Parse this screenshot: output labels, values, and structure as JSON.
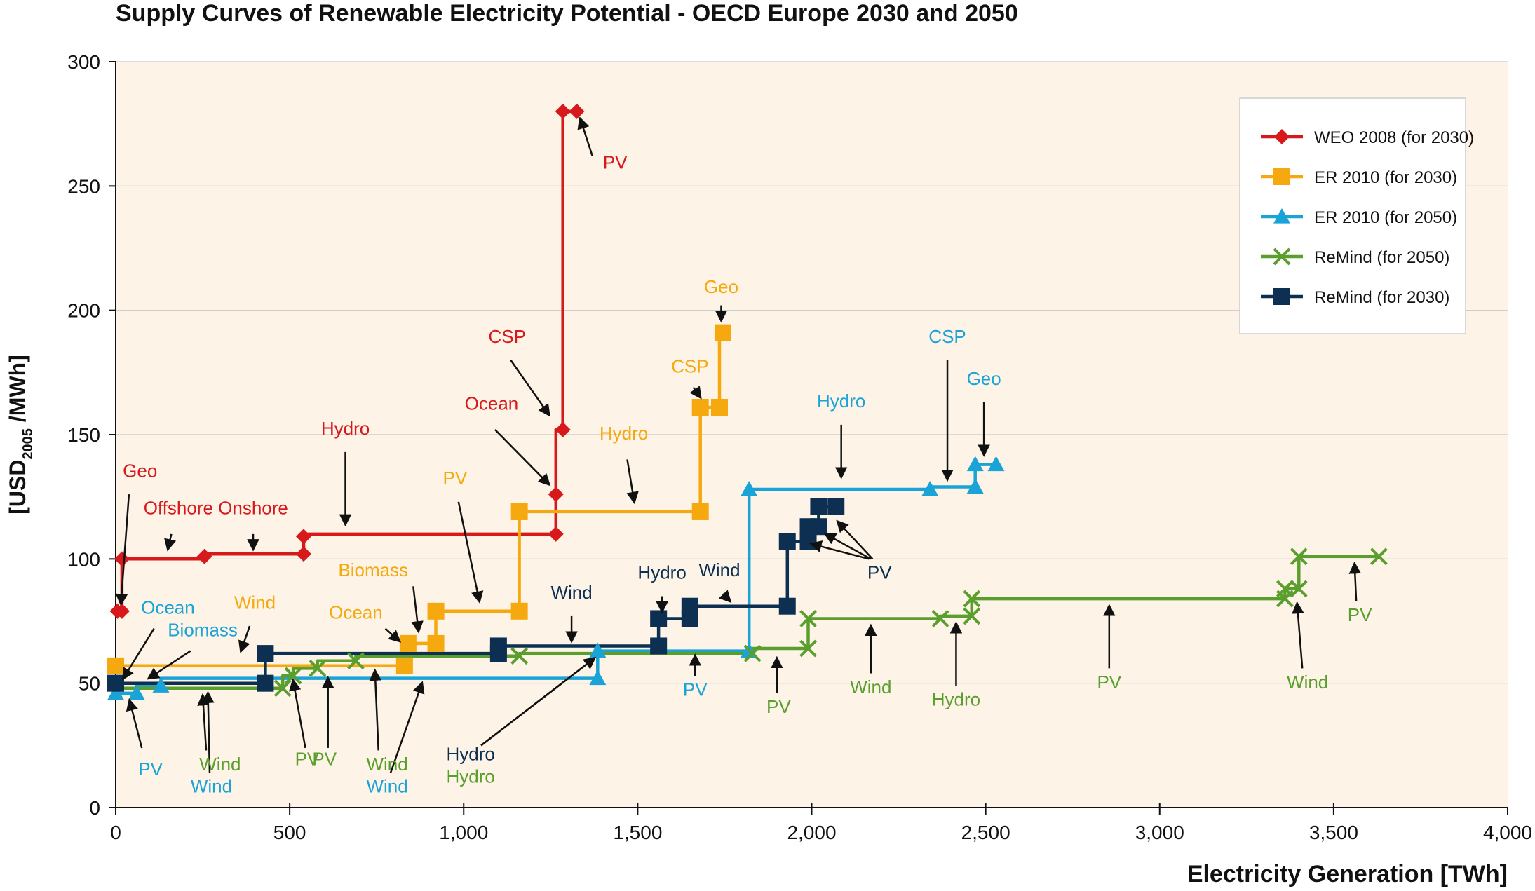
{
  "chart_data": {
    "type": "line",
    "title": "Supply Curves of Renewable Electricity Potential - OECD Europe 2030 and 2050",
    "xlabel": "Electricity Generation [TWh]",
    "ylabel_main": "[USD",
    "ylabel_sub": "2005",
    "ylabel_tail": " /MWh]",
    "xlim": [
      0,
      4000
    ],
    "ylim": [
      0,
      300
    ],
    "xticks": [
      0,
      500,
      1000,
      1500,
      2000,
      2500,
      3000,
      3500,
      4000
    ],
    "xtick_labels": [
      "0",
      "500",
      "1,000",
      "1,500",
      "2,000",
      "2,500",
      "3,000",
      "3,500",
      "4,000"
    ],
    "yticks": [
      0,
      50,
      100,
      150,
      200,
      250,
      300
    ],
    "ytick_labels": [
      "0",
      "50",
      "100",
      "150",
      "200",
      "250",
      "300"
    ],
    "grid": true,
    "legend_position": "top-right",
    "colors": {
      "weo": "#d7191c",
      "er2030": "#f5a90f",
      "er2050": "#1aa3d6",
      "remind2050": "#5a9e2e",
      "remind2030": "#0d2f52",
      "plot_bg": "#fdf4e7",
      "grid": "#c8c8c8"
    },
    "series": [
      {
        "name": "WEO 2008 (for 2030)",
        "color_key": "weo",
        "marker": "diamond",
        "points": [
          [
            0,
            79
          ],
          [
            18,
            79
          ],
          [
            18,
            100
          ],
          [
            255,
            100
          ],
          [
            255,
            102
          ],
          [
            540,
            102
          ],
          [
            540,
            110
          ],
          [
            1265,
            110
          ],
          [
            1265,
            126
          ],
          [
            1265,
            152
          ],
          [
            1285,
            152
          ],
          [
            1285,
            280
          ],
          [
            1325,
            280
          ]
        ],
        "markers": [
          [
            5,
            79
          ],
          [
            18,
            79
          ],
          [
            18,
            100
          ],
          [
            255,
            101
          ],
          [
            540,
            102
          ],
          [
            540,
            109
          ],
          [
            1265,
            110
          ],
          [
            1265,
            126
          ],
          [
            1285,
            152
          ],
          [
            1285,
            280
          ],
          [
            1325,
            280
          ]
        ]
      },
      {
        "name": "ER 2010 (for 2030)",
        "color_key": "er2030",
        "marker": "square",
        "points": [
          [
            0,
            57
          ],
          [
            830,
            57
          ],
          [
            830,
            66
          ],
          [
            920,
            66
          ],
          [
            920,
            79
          ],
          [
            1160,
            79
          ],
          [
            1160,
            119
          ],
          [
            1680,
            119
          ],
          [
            1680,
            161
          ],
          [
            1735,
            161
          ],
          [
            1735,
            191
          ],
          [
            1745,
            191
          ]
        ],
        "markers": [
          [
            0,
            57
          ],
          [
            830,
            57
          ],
          [
            840,
            66
          ],
          [
            920,
            66
          ],
          [
            920,
            79
          ],
          [
            1160,
            79
          ],
          [
            1160,
            119
          ],
          [
            1680,
            119
          ],
          [
            1680,
            161
          ],
          [
            1735,
            161
          ],
          [
            1745,
            191
          ]
        ]
      },
      {
        "name": "ER 2010 (for 2050)",
        "color_key": "er2050",
        "marker": "triangle",
        "points": [
          [
            0,
            46
          ],
          [
            60,
            46
          ],
          [
            60,
            49
          ],
          [
            130,
            49
          ],
          [
            130,
            52
          ],
          [
            1385,
            52
          ],
          [
            1385,
            63
          ],
          [
            1820,
            63
          ],
          [
            1820,
            128
          ],
          [
            2340,
            128
          ],
          [
            2340,
            129
          ],
          [
            2470,
            129
          ],
          [
            2470,
            138
          ],
          [
            2530,
            138
          ]
        ],
        "markers": [
          [
            0,
            46
          ],
          [
            60,
            46
          ],
          [
            130,
            49
          ],
          [
            1385,
            52
          ],
          [
            1385,
            63
          ],
          [
            1820,
            63
          ],
          [
            1820,
            128
          ],
          [
            2340,
            128
          ],
          [
            2470,
            129
          ],
          [
            2470,
            138
          ],
          [
            2530,
            138
          ]
        ]
      },
      {
        "name": "ReMind (for 2050)",
        "color_key": "remind2050",
        "marker": "x",
        "points": [
          [
            0,
            48
          ],
          [
            480,
            48
          ],
          [
            480,
            53
          ],
          [
            510,
            53
          ],
          [
            510,
            56
          ],
          [
            580,
            56
          ],
          [
            580,
            59
          ],
          [
            690,
            59
          ],
          [
            690,
            61
          ],
          [
            1160,
            61
          ],
          [
            1160,
            62
          ],
          [
            1830,
            62
          ],
          [
            1830,
            64
          ],
          [
            1990,
            64
          ],
          [
            1990,
            76
          ],
          [
            2370,
            76
          ],
          [
            2370,
            77
          ],
          [
            2460,
            77
          ],
          [
            2460,
            84
          ],
          [
            3360,
            84
          ],
          [
            3360,
            88
          ],
          [
            3400,
            88
          ],
          [
            3400,
            101
          ],
          [
            3630,
            101
          ]
        ],
        "markers": [
          [
            480,
            48
          ],
          [
            510,
            53
          ],
          [
            580,
            56
          ],
          [
            690,
            59
          ],
          [
            1160,
            61
          ],
          [
            1830,
            62
          ],
          [
            1990,
            64
          ],
          [
            1990,
            76
          ],
          [
            2370,
            76
          ],
          [
            2460,
            77
          ],
          [
            2460,
            84
          ],
          [
            3360,
            84
          ],
          [
            3360,
            88
          ],
          [
            3400,
            88
          ],
          [
            3400,
            101
          ],
          [
            3630,
            101
          ]
        ]
      },
      {
        "name": "ReMind (for 2030)",
        "color_key": "remind2030",
        "marker": "square",
        "points": [
          [
            0,
            50
          ],
          [
            430,
            50
          ],
          [
            430,
            62
          ],
          [
            1100,
            62
          ],
          [
            1100,
            65
          ],
          [
            1560,
            65
          ],
          [
            1560,
            76
          ],
          [
            1650,
            76
          ],
          [
            1650,
            81
          ],
          [
            1930,
            81
          ],
          [
            1930,
            107
          ],
          [
            1990,
            107
          ],
          [
            1990,
            113
          ],
          [
            2020,
            113
          ],
          [
            2020,
            121
          ],
          [
            2070,
            121
          ]
        ],
        "markers": [
          [
            0,
            50
          ],
          [
            430,
            50
          ],
          [
            430,
            62
          ],
          [
            1100,
            62
          ],
          [
            1100,
            65
          ],
          [
            1560,
            65
          ],
          [
            1560,
            76
          ],
          [
            1650,
            76
          ],
          [
            1650,
            81
          ],
          [
            1930,
            81
          ],
          [
            1930,
            107
          ],
          [
            1990,
            107
          ],
          [
            1990,
            113
          ],
          [
            2020,
            113
          ],
          [
            2020,
            121
          ],
          [
            2070,
            121
          ]
        ]
      }
    ],
    "annotations": [
      {
        "text": "PV",
        "color_key": "weo",
        "tx": 1435,
        "ty": 257,
        "ax": 1335,
        "ay": 277,
        "lx": 1370,
        "ly": 262
      },
      {
        "text": "CSP",
        "color_key": "weo",
        "tx": 1125,
        "ty": 187,
        "ax": 1245,
        "ay": 158,
        "lx": 1135,
        "ly": 180
      },
      {
        "text": "Ocean",
        "color_key": "weo",
        "tx": 1080,
        "ty": 160,
        "ax": 1245,
        "ay": 130,
        "lx": 1090,
        "ly": 152
      },
      {
        "text": "Hydro",
        "color_key": "weo",
        "tx": 660,
        "ty": 150,
        "ax": 660,
        "ay": 114,
        "lx": 660,
        "ly": 143
      },
      {
        "text": "Geo",
        "color_key": "weo",
        "tx": 70,
        "ty": 133,
        "ax": 15,
        "ay": 82,
        "lx": 38,
        "ly": 126
      },
      {
        "text": "Offshore",
        "color_key": "weo",
        "tx": 180,
        "ty": 118,
        "ax": 150,
        "ay": 104,
        "lx": 160,
        "ly": 110
      },
      {
        "text": "Onshore",
        "color_key": "weo",
        "tx": 395,
        "ty": 118,
        "ax": 395,
        "ay": 104,
        "lx": 395,
        "ly": 110
      },
      {
        "text": "Geo",
        "color_key": "er2030",
        "tx": 1740,
        "ty": 207,
        "ax": 1740,
        "ay": 196,
        "lx": 1740,
        "ly": 202
      },
      {
        "text": "CSP",
        "color_key": "er2030",
        "tx": 1650,
        "ty": 175,
        "ax": 1680,
        "ay": 165,
        "lx": 1660,
        "ly": 169
      },
      {
        "text": "Hydro",
        "color_key": "er2030",
        "tx": 1460,
        "ty": 148,
        "ax": 1490,
        "ay": 123,
        "lx": 1470,
        "ly": 140
      },
      {
        "text": "PV",
        "color_key": "er2030",
        "tx": 975,
        "ty": 130,
        "ax": 1045,
        "ay": 83,
        "lx": 985,
        "ly": 123
      },
      {
        "text": "Biomass",
        "color_key": "er2030",
        "tx": 740,
        "ty": 93,
        "ax": 870,
        "ay": 71,
        "lx": 855,
        "ly": 89
      },
      {
        "text": "Ocean",
        "color_key": "er2030",
        "tx": 690,
        "ty": 76,
        "ax": 815,
        "ay": 67,
        "lx": 775,
        "ly": 72
      },
      {
        "text": "Wind",
        "color_key": "er2030",
        "tx": 400,
        "ty": 80,
        "ax": 360,
        "ay": 63,
        "lx": 385,
        "ly": 73
      },
      {
        "text": "CSP",
        "color_key": "er2050",
        "tx": 2390,
        "ty": 187,
        "ax": 2390,
        "ay": 132,
        "lx": 2390,
        "ly": 180
      },
      {
        "text": "Geo",
        "color_key": "er2050",
        "tx": 2495,
        "ty": 170,
        "ax": 2495,
        "ay": 142,
        "lx": 2495,
        "ly": 163
      },
      {
        "text": "Hydro",
        "color_key": "er2050",
        "tx": 2085,
        "ty": 161,
        "ax": 2085,
        "ay": 133,
        "lx": 2085,
        "ly": 154
      },
      {
        "text": "Ocean",
        "color_key": "er2050",
        "tx": 150,
        "ty": 78,
        "ax": 22,
        "ay": 52,
        "lx": 110,
        "ly": 72
      },
      {
        "text": "Biomass",
        "color_key": "er2050",
        "tx": 250,
        "ty": 69,
        "ax": 95,
        "ay": 52,
        "lx": 215,
        "ly": 63
      },
      {
        "text": "PV",
        "color_key": "er2050",
        "tx": 100,
        "ty": 13,
        "ax": 40,
        "ay": 43,
        "lx": 75,
        "ly": 24
      },
      {
        "text": "PV",
        "color_key": "er2050",
        "tx": 1665,
        "ty": 45,
        "ax": 1665,
        "ay": 61,
        "lx": 1665,
        "ly": 53
      },
      {
        "text": "Wind",
        "color_key": "remind2050",
        "tx": 300,
        "ty": 15,
        "ax": 250,
        "ay": 45,
        "lx": 260,
        "ly": 23
      },
      {
        "text": "PV",
        "color_key": "remind2050",
        "tx": 600,
        "ty": 17,
        "ax": 610,
        "ay": 52,
        "lx": 610,
        "ly": 24
      },
      {
        "text": "PV",
        "color_key": "remind2050",
        "tx": 550,
        "ty": 17,
        "ax": 510,
        "ay": 51,
        "lx": 545,
        "ly": 24
      },
      {
        "text": "Wind",
        "color_key": "remind2050",
        "tx": 780,
        "ty": 15,
        "ax": 745,
        "ay": 55,
        "lx": 755,
        "ly": 23
      },
      {
        "text": "Hydro",
        "color_key": "remind2050",
        "tx": 1020,
        "ty": 10,
        "ax": 1375,
        "ay": 60,
        "lx": 1050,
        "ly": 25
      },
      {
        "text": "PV",
        "color_key": "remind2050",
        "tx": 1905,
        "ty": 38,
        "ax": 1900,
        "ay": 60,
        "lx": 1900,
        "ly": 46
      },
      {
        "text": "Wind",
        "color_key": "remind2050",
        "tx": 2170,
        "ty": 46,
        "ax": 2170,
        "ay": 73,
        "lx": 2170,
        "ly": 54
      },
      {
        "text": "Hydro",
        "color_key": "remind2050",
        "tx": 2415,
        "ty": 41,
        "ax": 2415,
        "ay": 74,
        "lx": 2415,
        "ly": 49
      },
      {
        "text": "PV",
        "color_key": "remind2050",
        "tx": 2855,
        "ty": 48,
        "ax": 2855,
        "ay": 81,
        "lx": 2855,
        "ly": 56
      },
      {
        "text": "Wind",
        "color_key": "remind2050",
        "tx": 3425,
        "ty": 48,
        "ax": 3395,
        "ay": 82,
        "lx": 3410,
        "ly": 56
      },
      {
        "text": "PV",
        "color_key": "remind2050",
        "tx": 3575,
        "ty": 75,
        "ax": 3560,
        "ay": 98,
        "lx": 3565,
        "ly": 83
      },
      {
        "text": "Wind",
        "color_key": "er2050",
        "tx": 275,
        "ty": 6,
        "ax": 265,
        "ay": 46,
        "lx": 270,
        "ly": 14
      },
      {
        "text": "Wind",
        "color_key": "er2050",
        "tx": 780,
        "ty": 6,
        "ax": 880,
        "ay": 50,
        "lx": 790,
        "ly": 14
      },
      {
        "text": "Hydro",
        "color_key": "remind2030",
        "tx": 1020,
        "ty": 19,
        "ax": 1375,
        "ay": 60,
        "lx": 1050,
        "ly": 25
      },
      {
        "text": "Wind",
        "color_key": "remind2030",
        "tx": 1310,
        "ty": 84,
        "ax": 1310,
        "ay": 67,
        "lx": 1310,
        "ly": 77
      },
      {
        "text": "Hydro",
        "color_key": "remind2030",
        "tx": 1570,
        "ty": 92,
        "ax": 1570,
        "ay": 79,
        "lx": 1570,
        "ly": 85
      },
      {
        "text": "Wind",
        "color_key": "remind2030",
        "tx": 1735,
        "ty": 93,
        "ax": 1765,
        "ay": 83,
        "lx": 1745,
        "ly": 86
      },
      {
        "text": "PV",
        "color_key": "remind2030",
        "tx": 2195,
        "ty": 92,
        "ax": 2075,
        "ay": 115,
        "lx": 2175,
        "ly": 100
      },
      {
        "text": "PV",
        "color_key": "remind2030",
        "tx": 2195,
        "ty": 92,
        "ax": 2040,
        "ay": 110,
        "lx": 2170,
        "ly": 100
      },
      {
        "text": "PV",
        "color_key": "remind2030",
        "tx": 2195,
        "ty": 92,
        "ax": 2000,
        "ay": 106,
        "lx": 2165,
        "ly": 100
      }
    ]
  }
}
